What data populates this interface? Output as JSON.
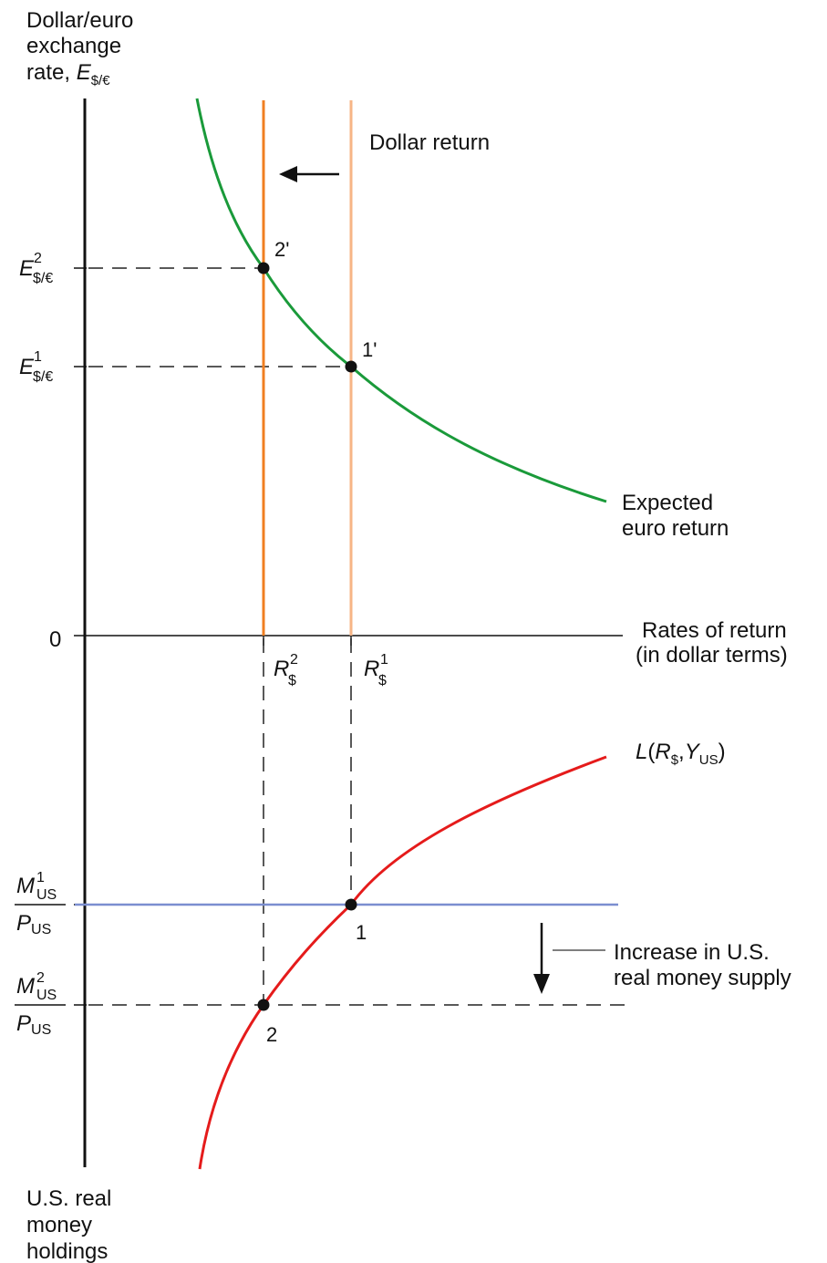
{
  "labels": {
    "y_axis_top": [
      "Dollar/euro",
      "exchange",
      "rate, "
    ],
    "y_axis_top_symbol": "E",
    "y_axis_top_sub": "$/€",
    "y_axis_bottom": [
      "U.S. real",
      "money",
      "holdings"
    ],
    "x_axis": [
      "Rates of return",
      "(in dollar terms)"
    ],
    "origin": "0",
    "dollar_return": "Dollar return",
    "expected_euro_return": [
      "Expected",
      "euro return"
    ],
    "increase_supply": [
      "Increase in U.S.",
      "real money supply"
    ],
    "liquidity_curve": {
      "L": "L",
      "open": "(",
      "R": "R",
      "R_sub": "$",
      "comma": ",",
      "Y": "Y",
      "Y_sub": "US",
      "close": ")"
    },
    "E2": {
      "main": "E",
      "sub": "$/€",
      "sup": "2"
    },
    "E1": {
      "main": "E",
      "sub": "$/€",
      "sup": "1"
    },
    "R2": {
      "main": "R",
      "sub": "$",
      "sup": "2"
    },
    "R1": {
      "main": "R",
      "sub": "$",
      "sup": "1"
    },
    "M1": {
      "main": "M",
      "sub": "US",
      "sup": "1"
    },
    "M2": {
      "main": "M",
      "sub": "US",
      "sup": "2"
    },
    "P": {
      "main": "P",
      "sub": "US"
    },
    "points": {
      "p2prime": "2'",
      "p1prime": "1'",
      "p1": "1",
      "p2": "2"
    }
  },
  "colors": {
    "euro_return_curve": "#1a9a3a",
    "dollar_return_new": "#f07f22",
    "dollar_return_old": "#f7b586",
    "liquidity_curve": "#e51b1b",
    "money_supply_line": "#7b8ed0",
    "axes": "#111111",
    "guides": "#222222"
  }
}
